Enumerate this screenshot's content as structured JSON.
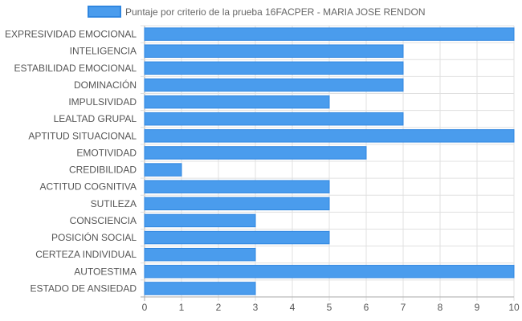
{
  "chart_data": {
    "type": "bar",
    "orientation": "horizontal",
    "legend": {
      "label": "Puntaje por criterio de la prueba 16FACPER - MARIA JOSE RENDON",
      "position": "top"
    },
    "categories": [
      "EXPRESIVIDAD EMOCIONAL",
      "INTELIGENCIA",
      "ESTABILIDAD EMOCIONAL",
      "DOMINACIÓN",
      "IMPULSIVIDAD",
      "LEALTAD GRUPAL",
      "APTITUD SITUACIONAL",
      "EMOTIVIDAD",
      "CREDIBILIDAD",
      "ACTITUD COGNITIVA",
      "SUTILEZA",
      "CONSCIENCIA",
      "POSICIÓN SOCIAL",
      "CERTEZA INDIVIDUAL",
      "AUTOESTIMA",
      "ESTADO DE ANSIEDAD"
    ],
    "series": [
      {
        "name": "Puntaje por criterio de la prueba 16FACPER - MARIA JOSE RENDON",
        "values": [
          10,
          7,
          7,
          7,
          5,
          7,
          10,
          6,
          1,
          5,
          5,
          3,
          5,
          3,
          10,
          3
        ]
      }
    ],
    "xlim": [
      0,
      10
    ],
    "xticks": [
      "0",
      "1",
      "2",
      "3",
      "4",
      "5",
      "6",
      "7",
      "8",
      "9",
      "10"
    ],
    "grid": true,
    "colors": {
      "bar_fill": "#4a9ced",
      "bar_stroke": "#2f86e0",
      "grid": "#e0e0e0",
      "axis": "#aaaaaa"
    }
  }
}
